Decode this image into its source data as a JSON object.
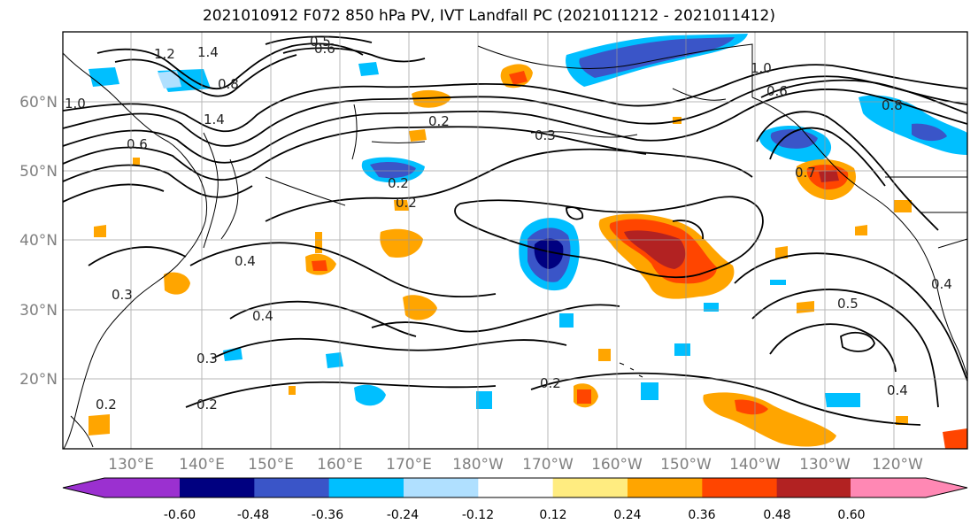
{
  "title": "2021010912 F072 850 hPa PV, IVT Landfall PC (2021011212 - 2021011412)",
  "map": {
    "lat_labels": [
      "60°N",
      "50°N",
      "40°N",
      "30°N",
      "20°N"
    ],
    "lon_labels": [
      "130°E",
      "140°E",
      "150°E",
      "160°E",
      "170°E",
      "180°W",
      "170°W",
      "160°W",
      "150°W",
      "140°W",
      "130°W",
      "120°W"
    ],
    "contour_labels": [
      "1.0",
      "1.2",
      "1.4",
      "0.8",
      "1.4",
      "0.6",
      "0.5",
      "0.6",
      "0.2",
      "0.3",
      "0.2",
      "0.2",
      "0.4",
      "0.3",
      "0.4",
      "0.3",
      "0.2",
      "0.2",
      "0.2",
      "0.6",
      "0.7",
      "1.0",
      "0.8",
      "0.5",
      "0.4",
      "0.4"
    ]
  },
  "colorbar": {
    "ticks": [
      "-0.60",
      "-0.48",
      "-0.36",
      "-0.24",
      "-0.12",
      "0.12",
      "0.24",
      "0.36",
      "0.48",
      "0.60"
    ],
    "colors": [
      "#9b30d0",
      "#000080",
      "#3a55c8",
      "#00bfff",
      "#b0e0ff",
      "#ffffff",
      "#ffec80",
      "#ffa500",
      "#ff4500",
      "#b22222",
      "#ff88b4"
    ]
  }
}
